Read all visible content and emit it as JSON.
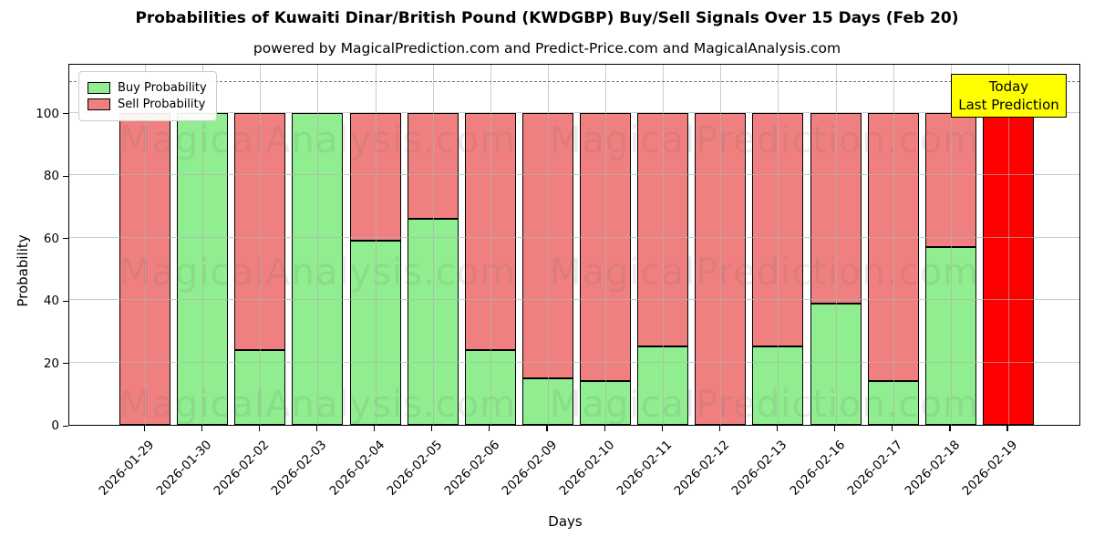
{
  "title": "Probabilities of Kuwaiti Dinar/British Pound (KWDGBP) Buy/Sell Signals Over 15 Days (Feb 20)",
  "subtitle": "powered by MagicalPrediction.com and Predict-Price.com and MagicalAnalysis.com",
  "legend": {
    "buy_label": "Buy Probability",
    "sell_label": "Sell Probability"
  },
  "annotation": {
    "line1": "Today",
    "line2": "Last Prediction"
  },
  "watermarks": [
    "MagicalAnalysis.com",
    "MagicalPrediction.com"
  ],
  "colors": {
    "buy": "#90EE90",
    "sell": "#F08080",
    "today_bar": "#FF0000",
    "annotation_bg": "#FFFF00",
    "grid": "#B0B0B0",
    "edge": "#000000"
  },
  "chart_data": {
    "type": "bar",
    "stacked": true,
    "title": "Probabilities of Kuwaiti Dinar/British Pound (KWDGBP) Buy/Sell Signals Over 15 Days (Feb 20)",
    "xlabel": "Days",
    "ylabel": "Probability",
    "ylim": [
      0,
      116
    ],
    "yticks": [
      0,
      20,
      40,
      60,
      80,
      100
    ],
    "dashed_line_y": 110,
    "grid": true,
    "legend_position": "upper-left",
    "categories": [
      "2026-01-29",
      "2026-01-30",
      "2026-02-02",
      "2026-02-03",
      "2026-02-04",
      "2026-02-05",
      "2026-02-06",
      "2026-02-09",
      "2026-02-10",
      "2026-02-11",
      "2026-02-12",
      "2026-02-13",
      "2026-02-16",
      "2026-02-17",
      "2026-02-18",
      "2026-02-19"
    ],
    "series": [
      {
        "name": "Buy Probability",
        "color": "#90EE90",
        "values": [
          0,
          100,
          24,
          100,
          59,
          66,
          24,
          15,
          14,
          25,
          0,
          25,
          39,
          14,
          57,
          0
        ]
      },
      {
        "name": "Sell Probability",
        "color": "#F08080",
        "values": [
          100,
          0,
          76,
          0,
          41,
          34,
          76,
          85,
          86,
          75,
          100,
          75,
          61,
          86,
          43,
          100
        ]
      }
    ],
    "today_bar": {
      "index": 15,
      "category": "2026-02-19",
      "color": "#FF0000",
      "value": 100
    }
  }
}
